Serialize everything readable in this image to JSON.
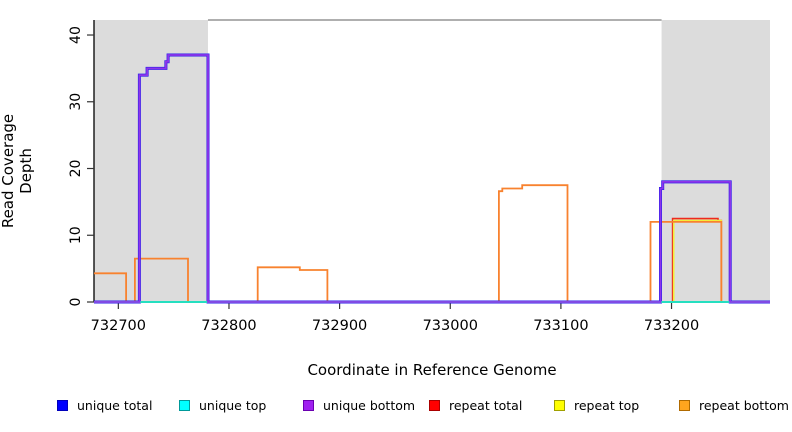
{
  "figure": {
    "background": "#ffffff"
  },
  "chart_data": {
    "type": "line",
    "subtype": "step-coverage",
    "title": "",
    "xlabel": "Coordinate in Reference Genome",
    "ylabel": "Read Coverage Depth",
    "xlim": [
      732678,
      733289
    ],
    "ylim": [
      0,
      42.25
    ],
    "grid": false,
    "legend_position": "bottom",
    "xticks": [
      732700,
      732800,
      732900,
      733000,
      733100,
      733200
    ],
    "xtick_labels": [
      "732700",
      "732800",
      "732900",
      "733000",
      "733100",
      "733200"
    ],
    "yticks": [
      0,
      10,
      20,
      30,
      40
    ],
    "ytick_labels": [
      "0",
      "10",
      "20",
      "30",
      "40"
    ],
    "shaded_regions": [
      {
        "x0": 732678,
        "x1": 732781,
        "color": "#dcdcdc"
      },
      {
        "x0": 733191,
        "x1": 733289,
        "color": "#dcdcdc"
      }
    ],
    "series": [
      {
        "name": "repeat total",
        "color": "#ee2a1e",
        "width": 1.6,
        "points": [
          [
            732678,
            0
          ],
          [
            733201,
            0
          ],
          [
            733201,
            12.5
          ],
          [
            733242,
            12.5
          ],
          [
            733242,
            12.2
          ],
          [
            733245,
            12.2
          ],
          [
            733245,
            0
          ],
          [
            733289,
            0
          ]
        ]
      },
      {
        "name": "repeat top",
        "color": "#f2ee3a",
        "width": 1.6,
        "points": [
          [
            732678,
            0
          ],
          [
            733202,
            0
          ],
          [
            733202,
            12.2
          ],
          [
            733245,
            12.2
          ],
          [
            733245,
            0
          ],
          [
            733289,
            0
          ]
        ]
      },
      {
        "name": "repeat bottom",
        "color": "#f8822f",
        "width": 1.8,
        "points": [
          [
            732678,
            4.3
          ],
          [
            732707,
            4.3
          ],
          [
            732707,
            0
          ],
          [
            732715,
            0
          ],
          [
            732715,
            6.5
          ],
          [
            732763,
            6.5
          ],
          [
            732763,
            0
          ],
          [
            732826,
            0
          ],
          [
            732826,
            5.2
          ],
          [
            732864,
            5.2
          ],
          [
            732864,
            4.8
          ],
          [
            732889,
            4.8
          ],
          [
            732889,
            0
          ],
          [
            733044,
            0
          ],
          [
            733044,
            16.6
          ],
          [
            733047,
            16.6
          ],
          [
            733047,
            17
          ],
          [
            733065,
            17
          ],
          [
            733065,
            17.5
          ],
          [
            733106,
            17.5
          ],
          [
            733106,
            0
          ],
          [
            733181,
            0
          ],
          [
            733181,
            12
          ],
          [
            733245,
            12
          ],
          [
            733245,
            0
          ],
          [
            733289,
            0
          ]
        ]
      },
      {
        "name": "unique total",
        "color": "#2a1fea",
        "width": 3.0,
        "points": [
          [
            732678,
            0
          ],
          [
            732719,
            0
          ],
          [
            732719,
            34
          ],
          [
            732726,
            34
          ],
          [
            732726,
            35
          ],
          [
            732743,
            35
          ],
          [
            732743,
            36
          ],
          [
            732745,
            36
          ],
          [
            732745,
            37
          ],
          [
            732781,
            37
          ],
          [
            732781,
            0
          ],
          [
            733190,
            0
          ],
          [
            733190,
            17
          ],
          [
            733192,
            17
          ],
          [
            733192,
            18
          ],
          [
            733253,
            18
          ],
          [
            733253,
            0
          ],
          [
            733289,
            0
          ]
        ]
      },
      {
        "name": "unique top",
        "color": "#25dfc0",
        "width": 2.0,
        "points": [
          [
            732678,
            0
          ],
          [
            733289,
            0
          ]
        ]
      },
      {
        "name": "unique bottom",
        "color": "#8d35ea",
        "width": 1.8,
        "points": [
          [
            732678,
            0
          ],
          [
            732719,
            0
          ],
          [
            732719,
            34
          ],
          [
            732726,
            34
          ],
          [
            732726,
            35
          ],
          [
            732743,
            35
          ],
          [
            732743,
            36
          ],
          [
            732745,
            36
          ],
          [
            732745,
            37
          ],
          [
            732781,
            37
          ],
          [
            732781,
            0
          ],
          [
            733190,
            0
          ],
          [
            733190,
            17
          ],
          [
            733192,
            17
          ],
          [
            733192,
            18
          ],
          [
            733253,
            18
          ],
          [
            733253,
            0
          ],
          [
            733289,
            0
          ]
        ]
      }
    ]
  },
  "axes_style": {
    "axis_color": "#000000",
    "top_border_color": "#7f7f7f",
    "tick_color": "#333333",
    "tick_label_color": "#000000"
  },
  "legend": {
    "items": [
      {
        "label": "unique total",
        "color": "#0000ff",
        "border": "#0000bb"
      },
      {
        "label": "unique top",
        "color": "#00ffff",
        "border": "#009999"
      },
      {
        "label": "unique bottom",
        "color": "#a020f0",
        "border": "#6a00b0"
      },
      {
        "label": "repeat total",
        "color": "#ff0000",
        "border": "#aa0000"
      },
      {
        "label": "repeat top",
        "color": "#ffff00",
        "border": "#a0a000"
      },
      {
        "label": "repeat bottom",
        "color": "#ffa51e",
        "border": "#b06a00"
      }
    ]
  }
}
